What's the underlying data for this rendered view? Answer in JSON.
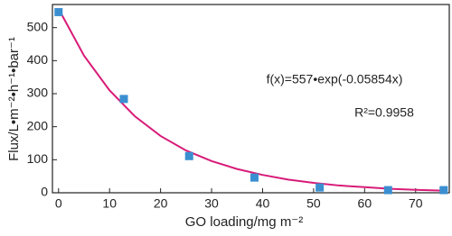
{
  "chart_data": {
    "type": "scatter",
    "xlabel": "GO loading/mg m⁻²",
    "ylabel": "Flux/L•m⁻²•h⁻¹•bar⁻¹",
    "annotations": [
      "f(x)=557•exp(-0.05854x)",
      "R²=0.9958"
    ],
    "xlim": [
      -1.2,
      76.6
    ],
    "ylim": [
      0,
      570
    ],
    "xticks": [
      0,
      10,
      20,
      30,
      40,
      50,
      60,
      70
    ],
    "yticks": [
      0,
      100,
      200,
      300,
      400,
      500
    ],
    "series": [
      {
        "color": "#3b8fd1",
        "x": [
          0,
          12.8,
          25.6,
          38.4,
          51.2,
          64.6,
          75.5
        ],
        "values": [
          547,
          284,
          111,
          46,
          16,
          8,
          8
        ]
      },
      {
        "type": "line",
        "color": "#d81b78",
        "x": [
          0,
          5,
          10,
          15,
          20,
          25,
          30,
          35,
          40,
          45,
          50,
          55,
          60,
          65,
          70,
          76
        ],
        "values": [
          557,
          415,
          310,
          231,
          172,
          128,
          96,
          72,
          54,
          40,
          30,
          22,
          17,
          12,
          9,
          6
        ]
      }
    ]
  }
}
